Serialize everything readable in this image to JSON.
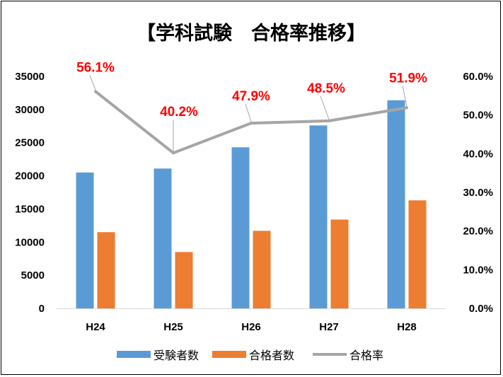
{
  "chart_data": {
    "type": "bar",
    "title": "【学科試験　合格率推移】",
    "categories": [
      "H24",
      "H25",
      "H26",
      "H27",
      "H28"
    ],
    "series": [
      {
        "name": "受験者数",
        "type": "bar",
        "axis": "left",
        "color": "#5b9bd5",
        "values": [
          20500,
          21100,
          24300,
          27600,
          31400
        ]
      },
      {
        "name": "合格者数",
        "type": "bar",
        "axis": "left",
        "color": "#ed7d31",
        "values": [
          11500,
          8500,
          11700,
          13400,
          16300
        ]
      },
      {
        "name": "合格率",
        "type": "line",
        "axis": "right",
        "color": "#a5a5a5",
        "values": [
          56.1,
          40.2,
          47.9,
          48.5,
          51.9
        ]
      }
    ],
    "data_labels": [
      "56.1%",
      "40.2%",
      "47.9%",
      "48.5%",
      "51.9%"
    ],
    "data_label_color": "#ff0000",
    "left_axis": {
      "ylim": [
        0,
        35000
      ],
      "ticks": [
        "0",
        "5000",
        "10000",
        "15000",
        "20000",
        "25000",
        "30000",
        "35000"
      ]
    },
    "right_axis": {
      "ylim": [
        0,
        60
      ],
      "ticks": [
        "0.0%",
        "10.0%",
        "20.0%",
        "30.0%",
        "40.0%",
        "50.0%",
        "60.0%"
      ]
    },
    "grid": false,
    "legend_position": "bottom"
  }
}
